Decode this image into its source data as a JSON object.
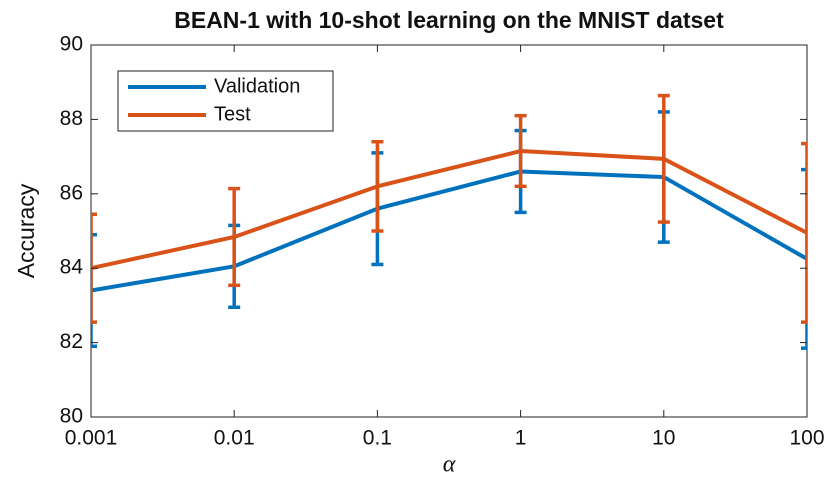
{
  "chart_data": {
    "type": "line",
    "title": "BEAN-1 with 10-shot learning on the MNIST datset",
    "x_label": "α",
    "y_label": "Accuracy",
    "x": [
      0.001,
      0.01,
      0.1,
      1,
      10,
      100
    ],
    "xlim": [
      0.001,
      100
    ],
    "xticks": [
      0.001,
      0.01,
      0.1,
      1,
      10,
      100
    ],
    "xlog": true,
    "ylim": [
      80,
      90
    ],
    "yticks": [
      80,
      82,
      84,
      86,
      88,
      90
    ],
    "grid": false,
    "legend": "upper left",
    "series": [
      {
        "name": "Validation",
        "color": "#0072bd",
        "values": [
          83.4,
          84.05,
          85.6,
          86.6,
          86.45,
          84.25
        ],
        "errors": [
          1.5,
          1.1,
          1.5,
          1.1,
          1.75,
          2.4
        ]
      },
      {
        "name": "Test",
        "color": "#d95319",
        "values": [
          84.0,
          84.84,
          86.2,
          87.15,
          86.94,
          84.95
        ],
        "errors": [
          1.45,
          1.3,
          1.2,
          0.95,
          1.7,
          2.4
        ]
      }
    ]
  }
}
